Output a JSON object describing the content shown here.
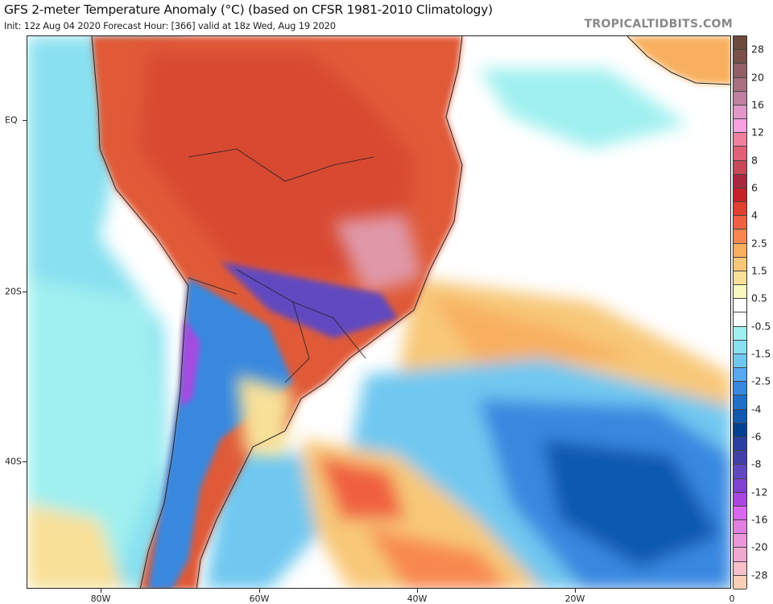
{
  "header": {
    "title": "GFS 2-meter Temperature Anomaly (°C) (based on CFSR 1981-2010 Climatology)",
    "subtitle": "Init: 12z Aug 04 2020   Forecast Hour: [366]   valid at 18z Wed, Aug 19 2020",
    "brand": "TROPICALTIDBITS.COM"
  },
  "axes": {
    "x_labels": [
      "80W",
      "60W",
      "40W",
      "20W",
      "0"
    ],
    "y_labels": [
      "EQ",
      "20S",
      "40S"
    ]
  },
  "colorbar": {
    "labels": [
      "28",
      "20",
      "16",
      "12",
      "8",
      "6",
      "4",
      "2.5",
      "1.5",
      "0.5",
      "-0.5",
      "-1.5",
      "-2.5",
      "-4",
      "-6",
      "-8",
      "-12",
      "-16",
      "-20",
      "-28"
    ],
    "colors": [
      "#6b4a3a",
      "#7a5048",
      "#946068",
      "#a87080",
      "#c080a0",
      "#e098c8",
      "#f8a0e0",
      "#f080a0",
      "#e06078",
      "#c84858",
      "#a82840",
      "#c82028",
      "#e04030",
      "#f06040",
      "#f88850",
      "#f8b060",
      "#f8c878",
      "#f8e098",
      "#f8f8c0",
      "#ffffff",
      "#ffffff",
      "#a0f0f0",
      "#88e0f0",
      "#70c8f0",
      "#58a8f0",
      "#3888e0",
      "#2070c8",
      "#1058b0",
      "#004090",
      "#2840a0",
      "#4040a8",
      "#6048c0",
      "#8040d0",
      "#a848e0",
      "#d868f0",
      "#e080e0",
      "#e898d8",
      "#f0a8d0",
      "#f8c0c8",
      "#f8d0b8"
    ]
  }
}
